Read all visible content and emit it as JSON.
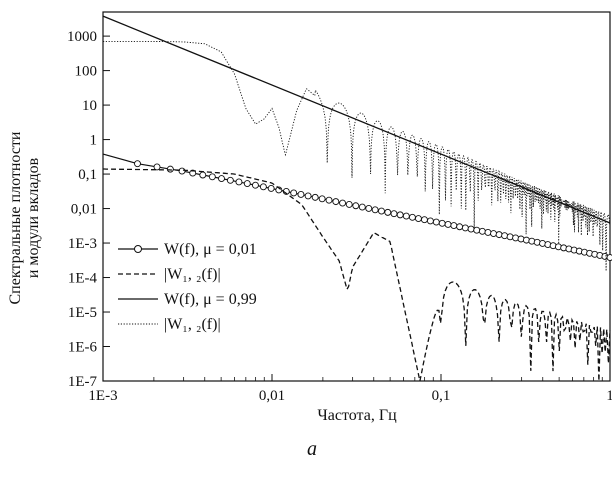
{
  "chart_data": {
    "type": "line",
    "panel_label": "a",
    "xlabel": "Частота, Гц",
    "ylabel_lines": [
      "Спектральные плотности",
      "и модули вкладов"
    ],
    "x_scale": "log",
    "y_scale": "log",
    "xlim": [
      0.001,
      1
    ],
    "ylim": [
      1e-07,
      5000
    ],
    "x_ticks": [
      {
        "value": 0.001,
        "label": "1E-3"
      },
      {
        "value": 0.01,
        "label": "0,01"
      },
      {
        "value": 0.1,
        "label": "0,1"
      },
      {
        "value": 1,
        "label": "1"
      }
    ],
    "y_ticks": [
      {
        "value": 1000,
        "label": "1000"
      },
      {
        "value": 100,
        "label": "100"
      },
      {
        "value": 10,
        "label": "10"
      },
      {
        "value": 1,
        "label": "1"
      },
      {
        "value": 0.1,
        "label": "0,1"
      },
      {
        "value": 0.01,
        "label": "0,01"
      },
      {
        "value": 0.001,
        "label": "1E-3"
      },
      {
        "value": 0.0001,
        "label": "1E-4"
      },
      {
        "value": 1e-05,
        "label": "1E-5"
      },
      {
        "value": 1e-06,
        "label": "1E-6"
      },
      {
        "value": 1e-07,
        "label": "1E-7"
      }
    ],
    "legend": [
      {
        "text": "W(f), μ = 0,01",
        "style": "solid-circle"
      },
      {
        "text": "|W₁, ₂(f)|",
        "style": "dashed"
      },
      {
        "text": "W(f), μ = 0,99",
        "style": "solid"
      },
      {
        "text": "|W₁, ₂(f)|",
        "style": "dotted"
      }
    ],
    "series": [
      {
        "style": "solid-circle",
        "x": [
          0.001,
          0.0016,
          0.003,
          0.0045,
          0.007,
          0.01,
          0.02,
          0.05,
          0.1,
          0.3,
          1
        ],
        "y": [
          0.38,
          0.2,
          0.12,
          0.082,
          0.054,
          0.038,
          0.019,
          0.0075,
          0.0038,
          0.0013,
          0.00038
        ]
      },
      {
        "style": "dashed",
        "x": [
          0.001,
          0.003,
          0.006,
          0.01,
          0.015,
          0.02,
          0.025,
          0.028,
          0.03,
          0.04,
          0.05,
          0.075,
          0.1,
          0.2,
          0.5,
          1
        ],
        "y": [
          0.14,
          0.13,
          0.1,
          0.055,
          0.013,
          0.0015,
          0.0003,
          4e-05,
          0.0002,
          0.002,
          0.0011,
          1e-07,
          0.0001,
          3e-05,
          8e-06,
          3e-06
        ]
      },
      {
        "style": "solid",
        "x": [
          0.001,
          1
        ],
        "y": [
          3800,
          0.0038
        ]
      },
      {
        "style": "dotted",
        "x": [
          0.001,
          0.002,
          0.003,
          0.004,
          0.005,
          0.006,
          0.007,
          0.008,
          0.009,
          0.01,
          0.011,
          0.012,
          0.014,
          0.016,
          0.02,
          0.05,
          0.1,
          0.3,
          1
        ],
        "y": [
          700,
          700,
          680,
          600,
          350,
          80,
          8,
          2.8,
          4,
          8,
          2.2,
          0.35,
          7,
          30,
          12,
          1.5,
          0.4,
          0.04,
          0.004
        ]
      }
    ]
  }
}
